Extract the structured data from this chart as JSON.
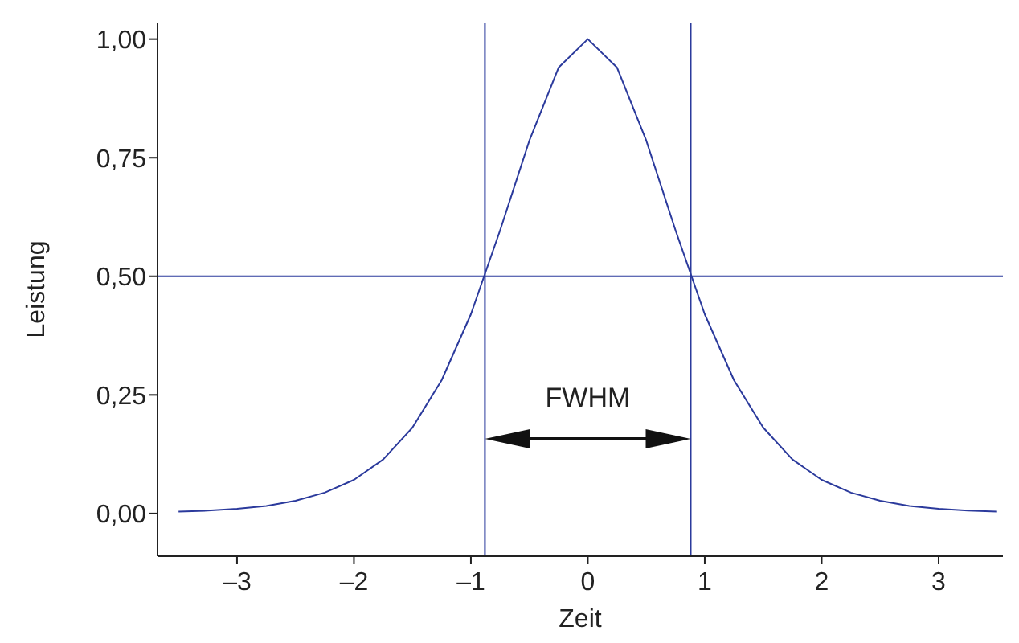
{
  "chart_data": {
    "type": "line",
    "xlabel": "Zeit",
    "ylabel": "Leistung",
    "x": [
      -3.5,
      -3.25,
      -3,
      -2.75,
      -2.5,
      -2.25,
      -2,
      -1.75,
      -1.5,
      -1.25,
      -1,
      -0.75,
      -0.5,
      -0.25,
      0,
      0.25,
      0.5,
      0.75,
      1,
      1.25,
      1.5,
      1.75,
      2,
      2.25,
      2.5,
      2.75,
      3,
      3.25,
      3.5
    ],
    "series": [
      {
        "color": "#2b3a9c",
        "values": [
          0.004,
          0.006,
          0.01,
          0.016,
          0.027,
          0.044,
          0.071,
          0.114,
          0.181,
          0.281,
          0.42,
          0.597,
          0.786,
          0.94,
          1,
          0.94,
          0.786,
          0.597,
          0.42,
          0.281,
          0.181,
          0.114,
          0.071,
          0.044,
          0.027,
          0.016,
          0.01,
          0.006,
          0.004
        ]
      }
    ],
    "xlim": [
      -3.68,
      3.55
    ],
    "ylim": [
      -0.09,
      1.035
    ],
    "xticks": [
      {
        "value": -3,
        "label": "–3"
      },
      {
        "value": -2,
        "label": "–2"
      },
      {
        "value": -1,
        "label": "–1"
      },
      0,
      1,
      2,
      3
    ],
    "yticks": [
      {
        "value": 0,
        "label": "0,00"
      },
      {
        "value": 0.25,
        "label": "0,25"
      },
      {
        "value": 0.5,
        "label": "0,50"
      },
      {
        "value": 0.75,
        "label": "0,75"
      },
      {
        "value": 1,
        "label": "1,00"
      }
    ],
    "ref_lines": [
      {
        "axis": "x",
        "value": -0.88,
        "color": "#2b3a9c"
      },
      {
        "axis": "x",
        "value": 0.88,
        "color": "#2b3a9c"
      },
      {
        "axis": "y",
        "value": 0.5,
        "color": "#2b3a9c"
      }
    ],
    "annotations": [
      "FWHM"
    ],
    "grid": false,
    "marker": "none",
    "line_style": "solid"
  }
}
